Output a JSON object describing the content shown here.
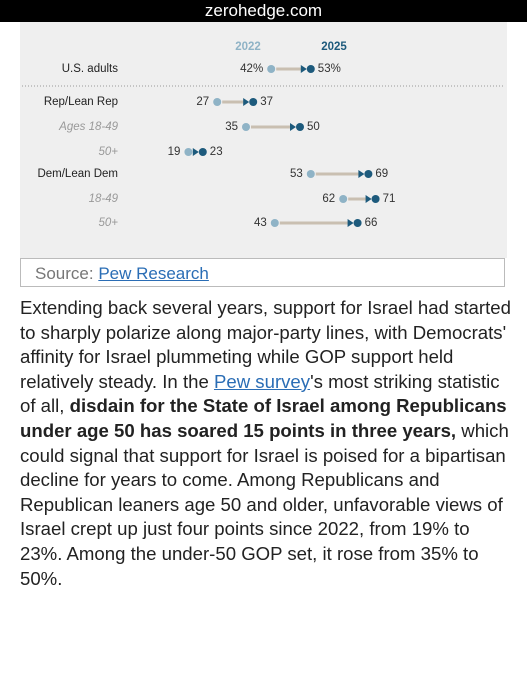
{
  "header": {
    "site": "zerohedge.com"
  },
  "chart_data": {
    "type": "dumbbell",
    "categories": [
      "U.S. adults",
      "Rep/Lean Rep",
      "Ages 18-49",
      "50+",
      "Dem/Lean Dem",
      "18-49",
      "50+"
    ],
    "series": [
      {
        "name": "2022",
        "color": "#8fb3c6",
        "values": [
          42,
          27,
          35,
          19,
          53,
          62,
          43
        ],
        "value_labels": [
          "42%",
          "27",
          "35",
          "19",
          "53",
          "62",
          "43"
        ]
      },
      {
        "name": "2025",
        "color": "#1d5a7c",
        "values": [
          53,
          37,
          50,
          23,
          69,
          71,
          66
        ],
        "value_labels": [
          "53%",
          "37",
          "50",
          "23",
          "69",
          "71",
          "66"
        ]
      }
    ]
  },
  "source": {
    "label": "Source:",
    "link": "Pew Research"
  },
  "article": {
    "paragraph": [
      {
        "text": "Extending back several years, support for Israel had started to sharply polarize along major-party lines, with Democrats' affinity for Israel plummeting while GOP support held relatively steady. In the "
      },
      {
        "link": "Pew survey"
      },
      {
        "text": "'s most striking statistic of all, "
      },
      {
        "bold": "disdain for the State of Israel among Republicans under age 50 has soared 15 points in three years,"
      },
      {
        "text": " which could signal that support for Israel is poised for a bipartisan decline for years to come. Among Republicans and Republican leaners age 50 and older, unfavorable views of Israel crept up just four points since 2022, from 19% to 23%. Among the under-50 GOP set, it rose from 35% to 50%."
      }
    ]
  }
}
